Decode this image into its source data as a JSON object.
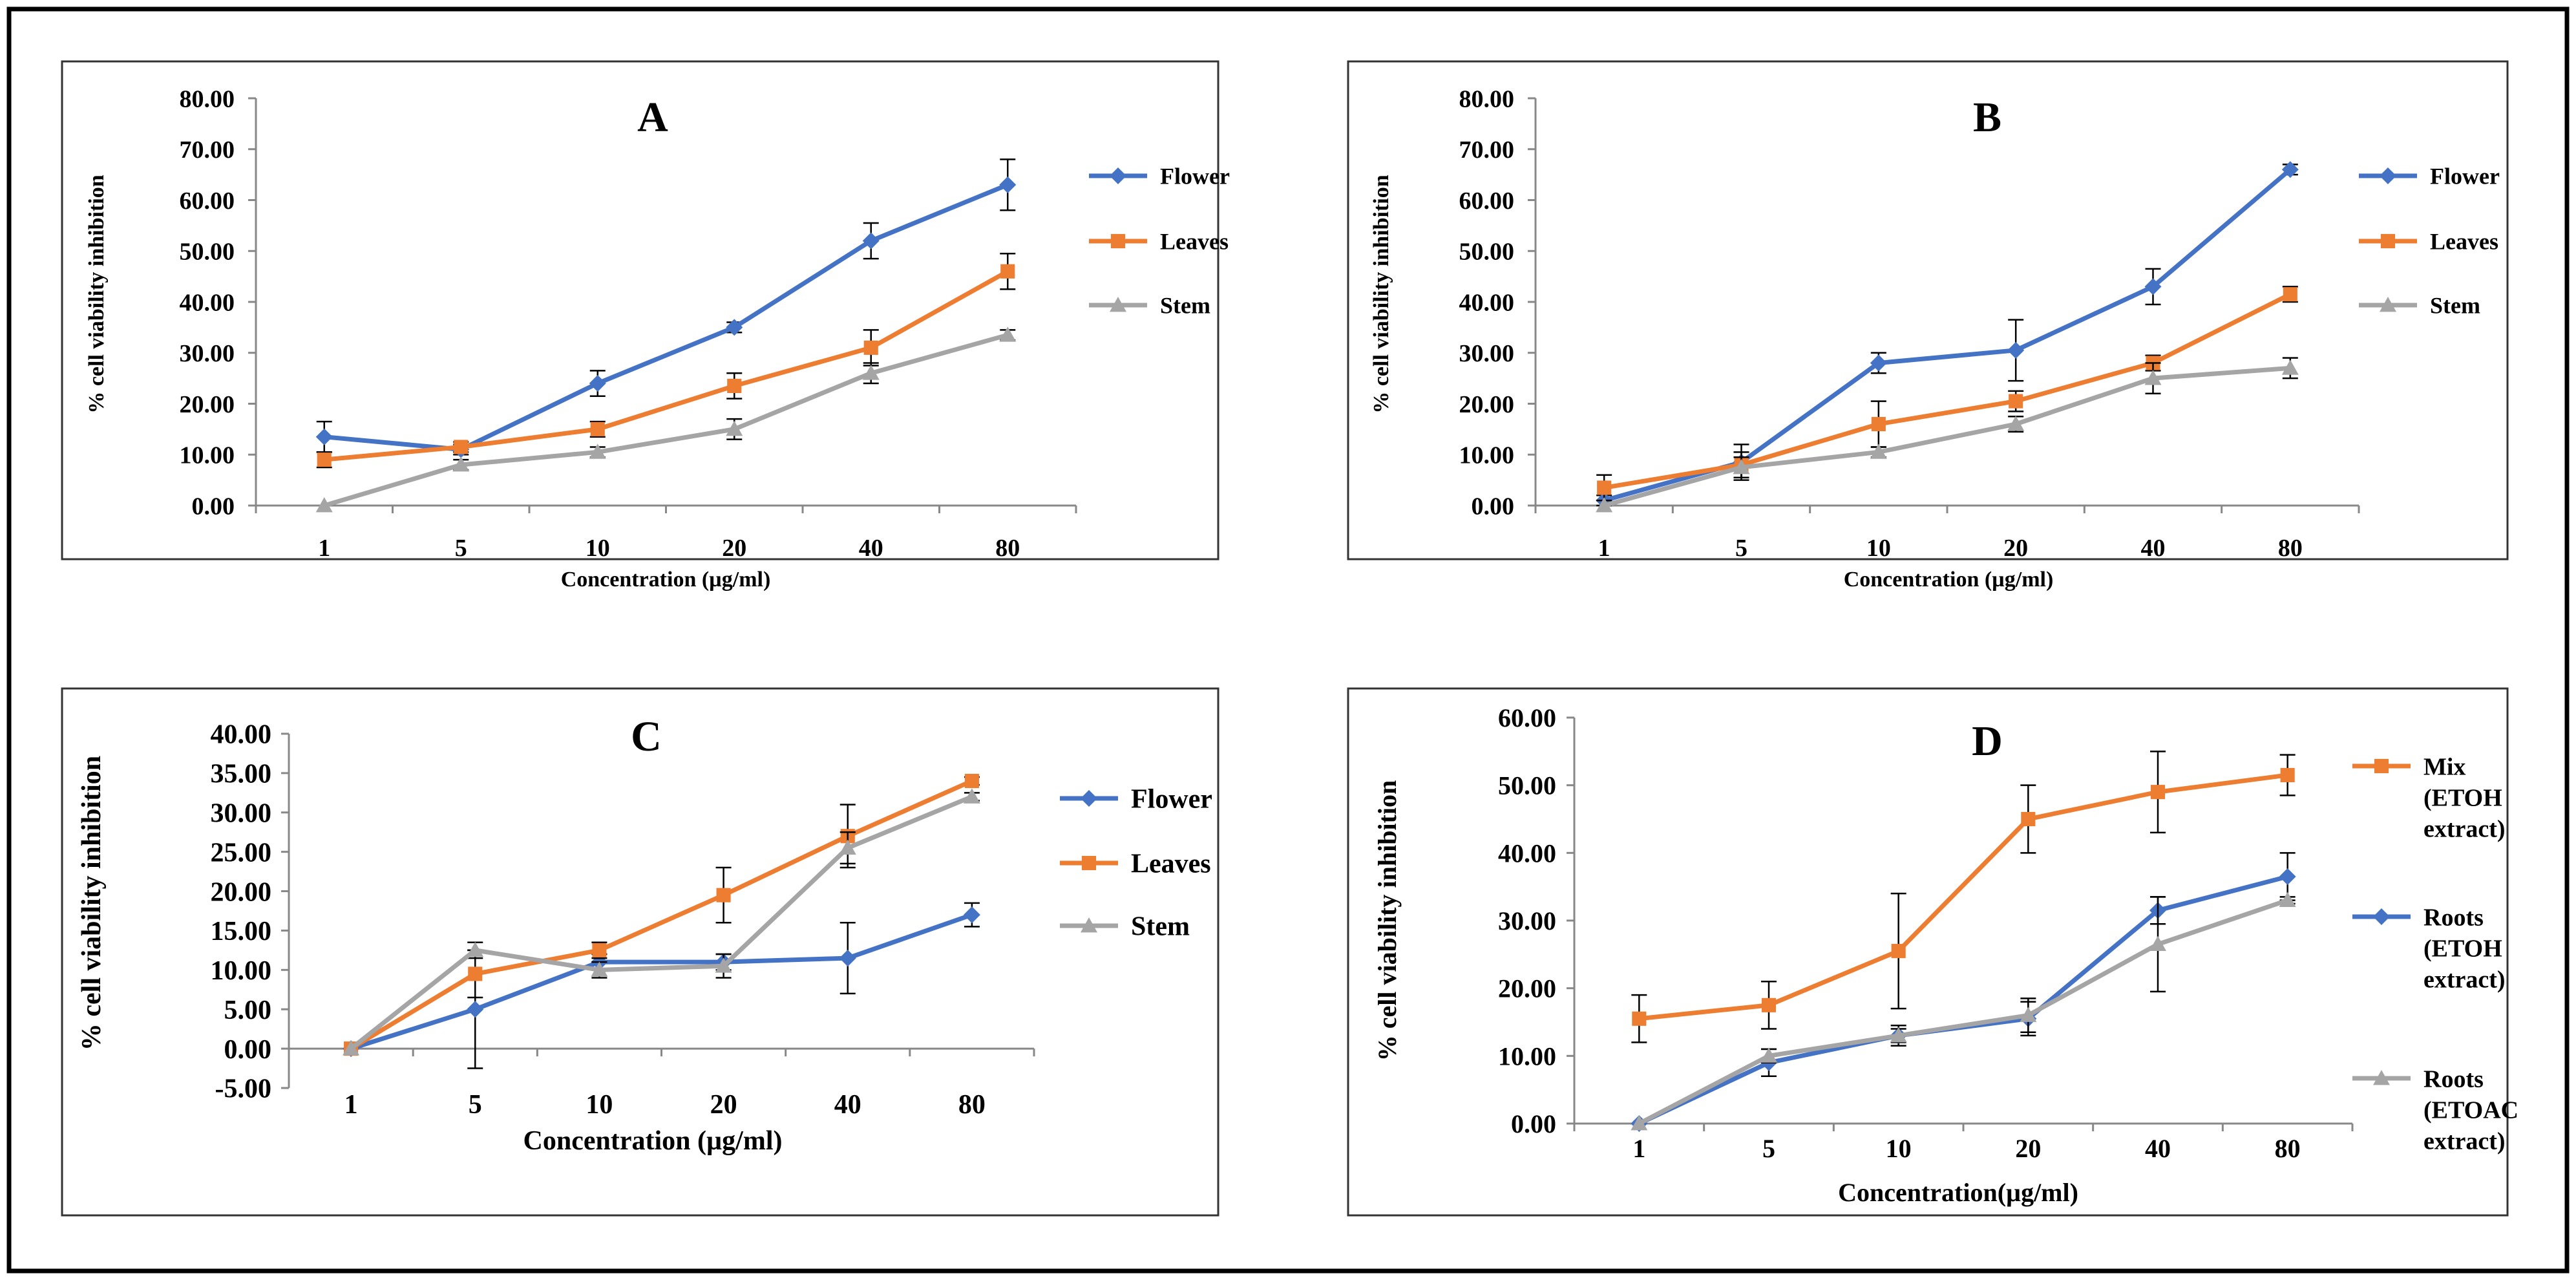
{
  "chart_data": [
    {
      "panel": "A",
      "type": "line",
      "title": "A",
      "xlabel": "Concentration  (µg/ml)",
      "ylabel": "% cell viability  inhibition",
      "categories": [
        "1",
        "5",
        "10",
        "20",
        "40",
        "80"
      ],
      "ylim": [
        0,
        80
      ],
      "yticks": [
        "0.00",
        "10.00",
        "20.00",
        "30.00",
        "40.00",
        "50.00",
        "60.00",
        "70.00",
        "80.00"
      ],
      "legend_position": "right",
      "series": [
        {
          "name": "Flower",
          "marker": "diamond",
          "color": "#4472C4",
          "values": [
            13.5,
            11.0,
            24.0,
            35.0,
            52.0,
            63.0
          ],
          "errors": [
            3.0,
            1.0,
            2.5,
            1.0,
            3.5,
            5.0
          ]
        },
        {
          "name": "Leaves",
          "marker": "square",
          "color": "#ED7D31",
          "values": [
            9.0,
            11.5,
            15.0,
            23.5,
            31.0,
            46.0
          ],
          "errors": [
            1.5,
            1.0,
            1.5,
            2.5,
            3.5,
            3.5
          ]
        },
        {
          "name": "Stem",
          "marker": "triangle",
          "color": "#A5A5A5",
          "values": [
            0.0,
            8.0,
            10.5,
            15.0,
            26.0,
            33.5
          ],
          "errors": [
            0.0,
            1.0,
            1.0,
            2.0,
            2.0,
            1.0
          ]
        }
      ]
    },
    {
      "panel": "B",
      "type": "line",
      "title": "B",
      "xlabel": "Concentration  (µg/ml)",
      "ylabel": "% cell viability  inhibition",
      "categories": [
        "1",
        "5",
        "10",
        "20",
        "40",
        "80"
      ],
      "ylim": [
        0,
        80
      ],
      "yticks": [
        "0.00",
        "10.00",
        "20.00",
        "30.00",
        "40.00",
        "50.00",
        "60.00",
        "70.00",
        "80.00"
      ],
      "legend_position": "right",
      "series": [
        {
          "name": "Flower",
          "marker": "diamond",
          "color": "#4472C4",
          "values": [
            1.0,
            8.5,
            28.0,
            30.5,
            43.0,
            66.0
          ],
          "errors": [
            1.0,
            3.5,
            2.0,
            6.0,
            3.5,
            1.0
          ]
        },
        {
          "name": "Leaves",
          "marker": "square",
          "color": "#ED7D31",
          "values": [
            3.5,
            8.0,
            16.0,
            20.5,
            28.0,
            41.5
          ],
          "errors": [
            2.5,
            2.5,
            4.5,
            2.0,
            1.5,
            1.5
          ]
        },
        {
          "name": "Stem",
          "marker": "triangle",
          "color": "#A5A5A5",
          "values": [
            0.0,
            7.5,
            10.5,
            16.0,
            25.0,
            27.0
          ],
          "errors": [
            0.0,
            2.0,
            1.0,
            1.5,
            3.0,
            2.0
          ]
        }
      ]
    },
    {
      "panel": "C",
      "type": "line",
      "title": "C",
      "xlabel": "Concentration  (µg/ml)",
      "ylabel": "% cell viability  inhibition",
      "categories": [
        "1",
        "5",
        "10",
        "20",
        "40",
        "80"
      ],
      "ylim": [
        -5,
        40
      ],
      "yticks": [
        "-5.00",
        "0.00",
        "5.00",
        "10.00",
        "15.00",
        "20.00",
        "25.00",
        "30.00",
        "35.00",
        "40.00"
      ],
      "legend_position": "right",
      "series": [
        {
          "name": "Flower",
          "marker": "diamond",
          "color": "#4472C4",
          "values": [
            0.0,
            5.0,
            11.0,
            11.0,
            11.5,
            17.0
          ],
          "errors": [
            0.0,
            7.5,
            1.0,
            1.0,
            4.5,
            1.5
          ]
        },
        {
          "name": "Leaves",
          "marker": "square",
          "color": "#ED7D31",
          "values": [
            0.0,
            9.5,
            12.5,
            19.5,
            27.0,
            34.0
          ],
          "errors": [
            0.0,
            3.0,
            1.0,
            3.5,
            4.0,
            0.5
          ]
        },
        {
          "name": "Stem",
          "marker": "triangle",
          "color": "#A5A5A5",
          "values": [
            0.0,
            12.5,
            10.0,
            10.5,
            25.5,
            32.0
          ],
          "errors": [
            0.0,
            1.0,
            1.0,
            1.5,
            2.0,
            0.5
          ]
        }
      ]
    },
    {
      "panel": "D",
      "type": "line",
      "title": "D",
      "xlabel": "Concentration(µg/ml)",
      "ylabel": "% cell viability  inhibition",
      "categories": [
        "1",
        "5",
        "10",
        "20",
        "40",
        "80"
      ],
      "ylim": [
        0,
        60
      ],
      "yticks": [
        "0.00",
        "10.00",
        "20.00",
        "30.00",
        "40.00",
        "50.00",
        "60.00"
      ],
      "legend_position": "right",
      "series": [
        {
          "name": "Mix",
          "legend_lines": [
            "Mix",
            "(ETOH",
            "extract)"
          ],
          "marker": "square",
          "color": "#ED7D31",
          "values": [
            15.5,
            17.5,
            25.5,
            45.0,
            49.0,
            51.5
          ],
          "errors": [
            3.5,
            3.5,
            8.5,
            5.0,
            6.0,
            3.0
          ]
        },
        {
          "name": "Roots (ETOH extract)",
          "legend_lines": [
            "Roots",
            "(ETOH",
            "extract)"
          ],
          "marker": "diamond",
          "color": "#4472C4",
          "values": [
            0.0,
            9.0,
            13.0,
            15.5,
            31.5,
            36.5
          ],
          "errors": [
            0.0,
            2.0,
            1.5,
            2.5,
            2.0,
            3.5
          ]
        },
        {
          "name": "Roots (ETOAC extract)",
          "legend_lines": [
            "Roots",
            "(ETOAC",
            "extract)"
          ],
          "marker": "triangle",
          "color": "#A5A5A5",
          "values": [
            0.0,
            10.0,
            13.0,
            16.0,
            26.5,
            33.0
          ],
          "errors": [
            0.0,
            1.0,
            1.0,
            2.5,
            7.0,
            0.5
          ]
        }
      ]
    }
  ]
}
